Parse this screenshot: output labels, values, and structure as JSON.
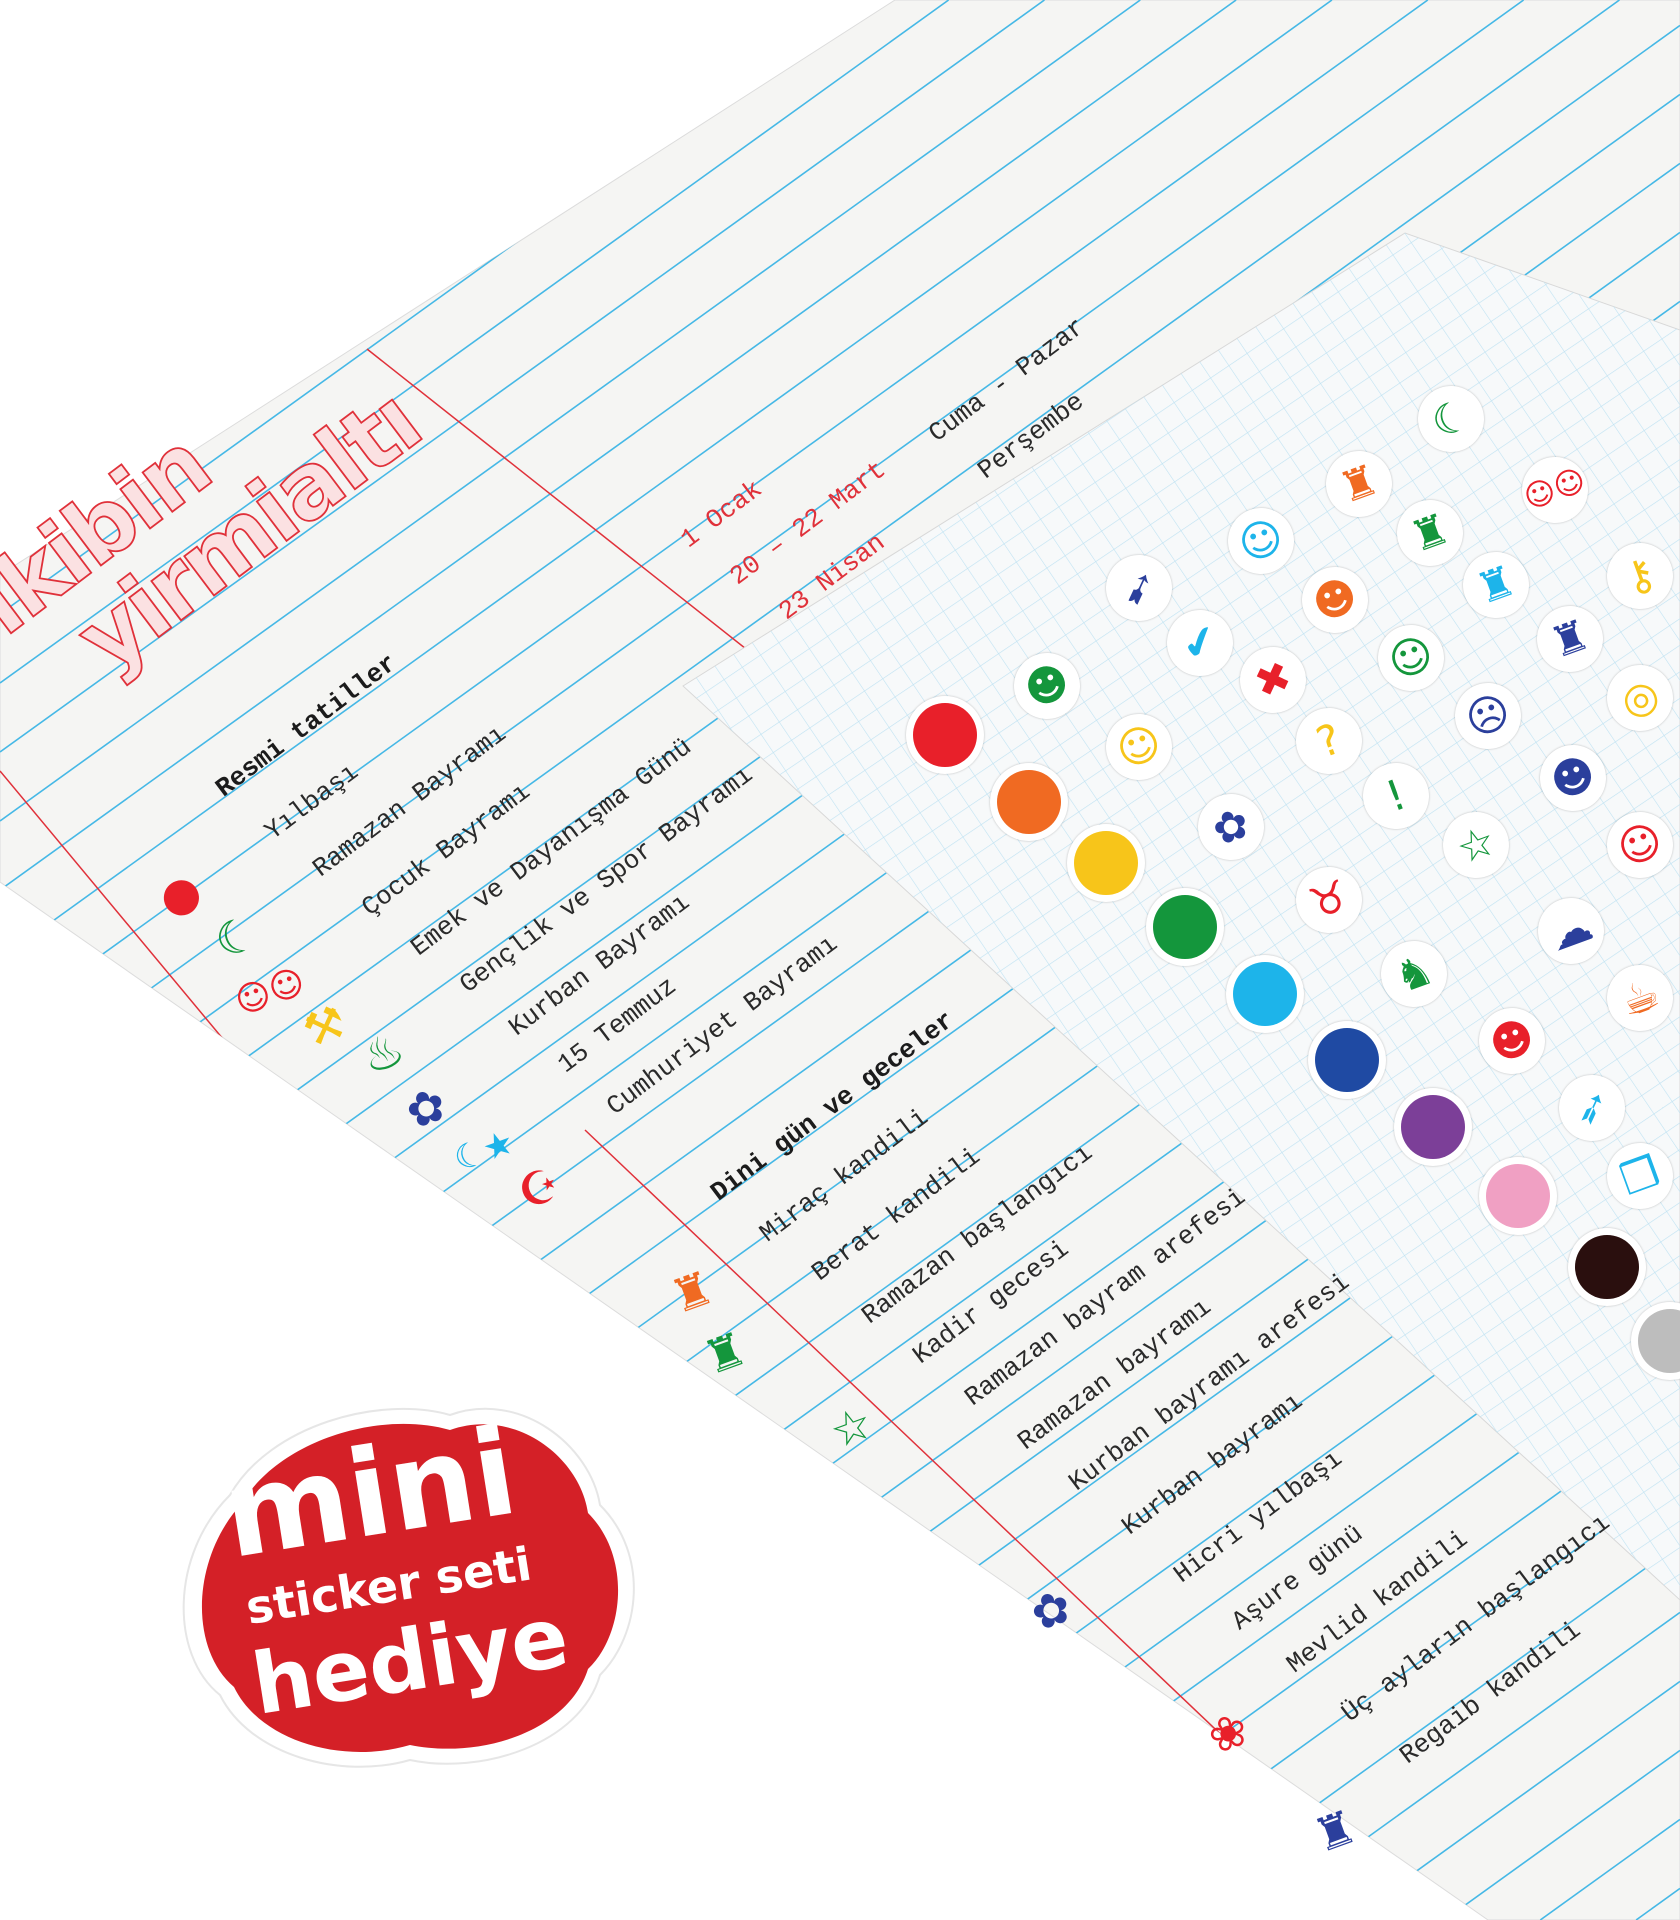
{
  "logo": {
    "line1": "ikibin",
    "line2": "yirmialtı",
    "color": "#e0313a"
  },
  "official_holidays": {
    "heading": "Resmi tatiller",
    "items": [
      "Yılbaşı",
      "Ramazan Bayramı",
      "Çocuk Bayramı",
      "Emek ve Dayanışma Günü",
      "Gençlik ve Spor Bayramı",
      "Kurban Bayramı",
      "15 Temmuz",
      "Cumhuriyet Bayramı"
    ],
    "dates": [
      "1 Ocak",
      "20 – 22 Mart",
      "23 Nisan"
    ],
    "days": [
      "Cuma - Pazar",
      "Perşembe"
    ]
  },
  "religious_days": {
    "heading": "Dini gün ve geceler",
    "items": [
      "Miraç kandili",
      "Berat kandili",
      "Ramazan başlangıcı",
      "Kadir gecesi",
      "Ramazan bayram arefesi",
      "Ramazan bayramı",
      "Kurban bayramı arefesi",
      "Kurban bayramı",
      "Hicri yılbaşı",
      "Aşure günü",
      "Mevlid kandili",
      "Üç ayların başlangıcı",
      "Regaib kandili"
    ]
  },
  "seal": {
    "line1": "mini",
    "line2": "sticker seti",
    "line3": "hediye",
    "color": "#d42027"
  },
  "colors": {
    "ruling": "#45b8e6",
    "margin": "#e0313a",
    "paper": "#f5f5f3",
    "grid": "#bfe2f2"
  },
  "sticker_dots": [
    "#e8202a",
    "#f06a22",
    "#f7c51a",
    "#14963c",
    "#1db4ea",
    "#1f4aa3",
    "#7c3f98",
    "#f0a0c3",
    "#2a0f0e",
    "#bdbdbd"
  ],
  "sticker_icons": [
    {
      "name": "moon",
      "color": "#14963c"
    },
    {
      "name": "kids",
      "color": "#e8202a"
    },
    {
      "name": "lantern",
      "color": "#f06a22"
    },
    {
      "name": "lantern",
      "color": "#14963c"
    },
    {
      "name": "lantern",
      "color": "#1db4ea"
    },
    {
      "name": "lantern",
      "color": "#2b3f9c"
    },
    {
      "name": "key",
      "color": "#f7c51a"
    },
    {
      "name": "smiley",
      "color": "#1db4ea"
    },
    {
      "name": "pushpin",
      "color": "#2b3f9c"
    },
    {
      "name": "laughing-face",
      "color": "#f06a22"
    },
    {
      "name": "checkmark",
      "color": "#1db4ea"
    },
    {
      "name": "smiley",
      "color": "#14963c"
    },
    {
      "name": "cross",
      "color": "#e8202a"
    },
    {
      "name": "rings",
      "color": "#f7c51a"
    },
    {
      "name": "duck",
      "color": "#14963c"
    },
    {
      "name": "cat",
      "color": "#f7c51a"
    },
    {
      "name": "question",
      "color": "#f7c51a"
    },
    {
      "name": "surprised-face",
      "color": "#2b3f9c"
    },
    {
      "name": "glasses-face",
      "color": "#2b3f9c"
    },
    {
      "name": "exclamation",
      "color": "#14963c"
    },
    {
      "name": "sleepy-face",
      "color": "#e8202a"
    },
    {
      "name": "sheep",
      "color": "#2b3f9c"
    },
    {
      "name": "star",
      "color": "#14963c"
    },
    {
      "name": "cow",
      "color": "#e8202a"
    },
    {
      "name": "cloud",
      "color": "#2b3f9c"
    },
    {
      "name": "dinosaur",
      "color": "#14963c"
    },
    {
      "name": "cup",
      "color": "#f06a22"
    },
    {
      "name": "bear",
      "color": "#e8202a"
    },
    {
      "name": "rocket",
      "color": "#1db4ea"
    },
    {
      "name": "box",
      "color": "#1db4ea"
    }
  ],
  "paper_icons": [
    {
      "name": "dot",
      "color": "#e8202a"
    },
    {
      "name": "moon",
      "color": "#14963c"
    },
    {
      "name": "kids",
      "color": "#e8202a"
    },
    {
      "name": "wrench",
      "color": "#f7c51a"
    },
    {
      "name": "torch",
      "color": "#14963c"
    },
    {
      "name": "sheep",
      "color": "#2b3f9c"
    },
    {
      "name": "moon-star",
      "color": "#1db4ea"
    },
    {
      "name": "crescent-star",
      "color": "#e8202a"
    },
    {
      "name": "lantern",
      "color": "#f06a22"
    },
    {
      "name": "lantern",
      "color": "#14963c"
    },
    {
      "name": "star",
      "color": "#14963c"
    },
    {
      "name": "sheep",
      "color": "#2b3f9c"
    },
    {
      "name": "rose",
      "color": "#e8202a"
    },
    {
      "name": "lantern",
      "color": "#2b3f9c"
    }
  ]
}
